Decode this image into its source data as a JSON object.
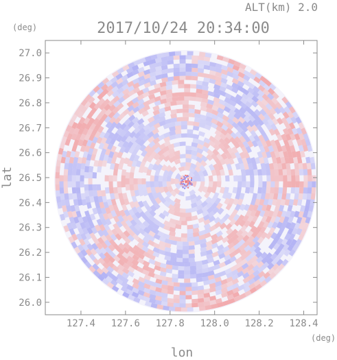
{
  "altitude_label": "ALT(km)  2.0",
  "timestamp": "2017/10/24 20:34:00",
  "chart_data": {
    "type": "heatmap",
    "title": "2017/10/24 20:34:00",
    "subtitle": "ALT(km)  2.0",
    "xlabel": "lon",
    "ylabel": "lat",
    "x_unit": "(deg)",
    "y_unit": "(deg)",
    "xlim": [
      127.24,
      128.46
    ],
    "ylim": [
      25.95,
      27.05
    ],
    "x_ticks": [
      127.4,
      127.6,
      127.8,
      128.0,
      128.2,
      128.4
    ],
    "y_ticks": [
      26.0,
      26.1,
      26.2,
      26.3,
      26.4,
      26.5,
      26.6,
      26.7,
      26.8,
      26.9,
      27.0
    ],
    "x_tick_labels": [
      "127.4",
      "127.6",
      "127.8",
      "128.0",
      "128.2",
      "128.4"
    ],
    "y_tick_labels": [
      "26.0",
      "26.1",
      "26.2",
      "26.3",
      "26.4",
      "26.5",
      "26.6",
      "26.7",
      "26.8",
      "26.9",
      "27.0"
    ],
    "radar_center": {
      "lon": 127.87,
      "lat": 26.485
    },
    "radar_radius_deg_lon": 0.59,
    "colors": {
      "positive": "#f08080",
      "negative": "#8c8cf0",
      "axis": "#8a8a8a"
    }
  }
}
